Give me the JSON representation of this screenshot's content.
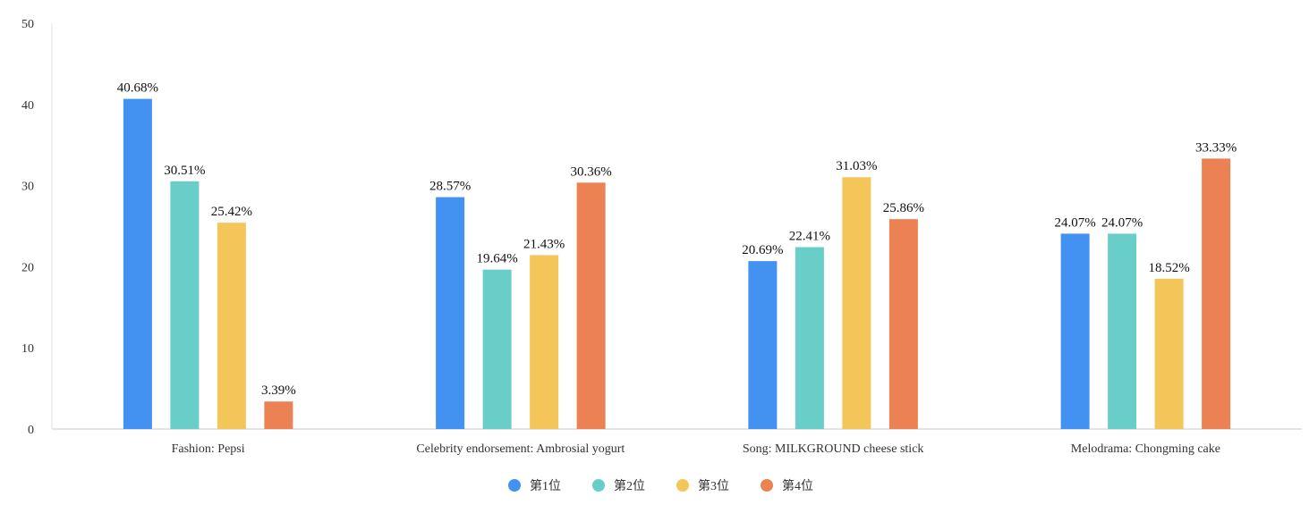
{
  "chart_data": {
    "type": "bar",
    "categories": [
      "Fashion: Pepsi",
      "Celebrity endorsement: Ambrosial yogurt",
      "Song: MILKGROUND cheese stick",
      "Melodrama: Chongming cake"
    ],
    "series": [
      {
        "name": "第1位",
        "color": "#4392F1",
        "values": [
          40.68,
          28.57,
          20.69,
          24.07
        ],
        "labels": [
          "40.68%",
          "28.57%",
          "20.69%",
          "24.07%"
        ]
      },
      {
        "name": "第2位",
        "color": "#69CDC8",
        "values": [
          30.51,
          19.64,
          22.41,
          24.07
        ],
        "labels": [
          "30.51%",
          "19.64%",
          "22.41%",
          "24.07%"
        ]
      },
      {
        "name": "第3位",
        "color": "#F4C65A",
        "values": [
          25.42,
          21.43,
          31.03,
          18.52
        ],
        "labels": [
          "25.42%",
          "21.43%",
          "31.03%",
          "18.52%"
        ]
      },
      {
        "name": "第4位",
        "color": "#EC8254",
        "values": [
          3.39,
          30.36,
          25.86,
          33.33
        ],
        "labels": [
          "3.39%",
          "30.36%",
          "25.86%",
          "33.33%"
        ]
      }
    ],
    "ylim": [
      0,
      50
    ],
    "yticks": [
      "0",
      "10",
      "20",
      "30",
      "40",
      "50"
    ],
    "grid": false,
    "legend_position": "bottom"
  }
}
